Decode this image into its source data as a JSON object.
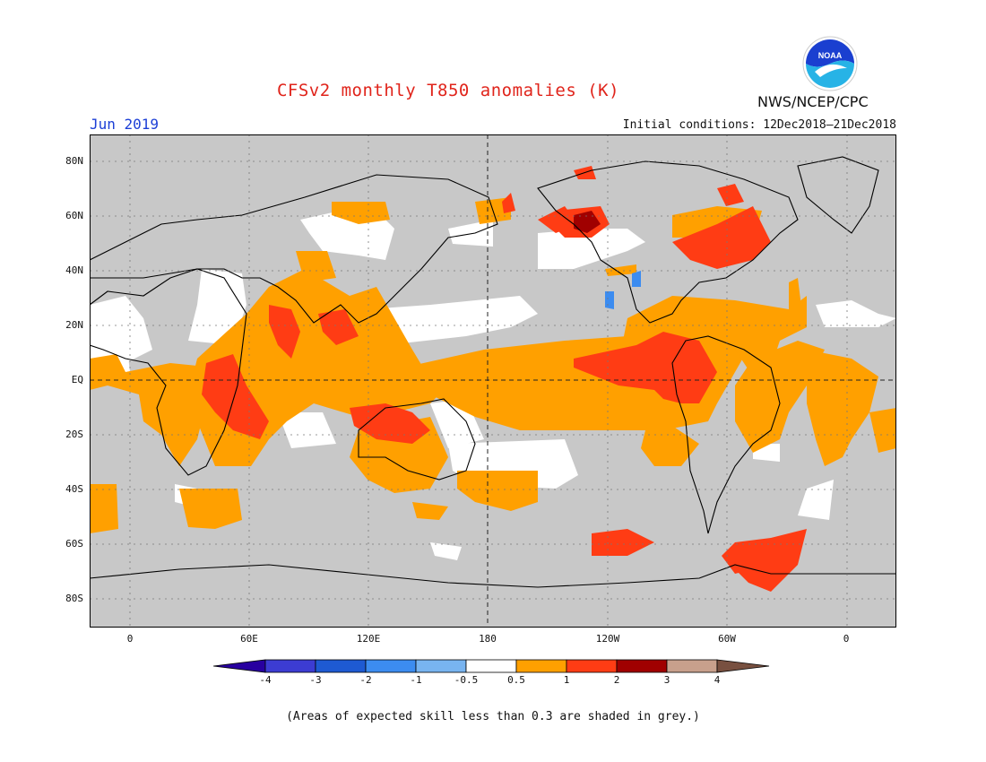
{
  "header": {
    "title": "CFSv2 monthly T850 anomalies (K)",
    "month": "Jun 2019",
    "initial_conditions": "Initial conditions: 12Dec2018–21Dec2018",
    "agency": "NWS/NCEP/CPC",
    "logo_text": "NOAA",
    "logo_icon": "noaa-logo-icon"
  },
  "map": {
    "lat_labels": [
      "80N",
      "60N",
      "40N",
      "20N",
      "EQ",
      "20S",
      "40S",
      "60S",
      "80S"
    ],
    "lon_labels": [
      "0",
      "60E",
      "120E",
      "180",
      "120W",
      "60W",
      "0"
    ],
    "colors": {
      "grey_low_skill": "#c8c8c8",
      "near_zero": "#ffffff",
      "anom_0_5_to_1": "#ffa000",
      "anom_1_to_2": "#ff3c14",
      "anom_2_to_3": "#a00000",
      "anom_3_to_4": "#c8a08c"
    }
  },
  "colorbar": {
    "tick_labels": [
      "-4",
      "-3",
      "-2",
      "-1",
      "-0.5",
      "0.5",
      "1",
      "2",
      "3",
      "4"
    ],
    "colors": [
      "#2800a0",
      "#3c3cd2",
      "#1e5ad2",
      "#3c8cf0",
      "#78b4f0",
      "#ffffff",
      "#ffa000",
      "#ff3c14",
      "#a00000",
      "#c8a08c",
      "#785040"
    ]
  },
  "footer": {
    "note": "(Areas of expected skill less than 0.3 are shaded in grey.)"
  }
}
